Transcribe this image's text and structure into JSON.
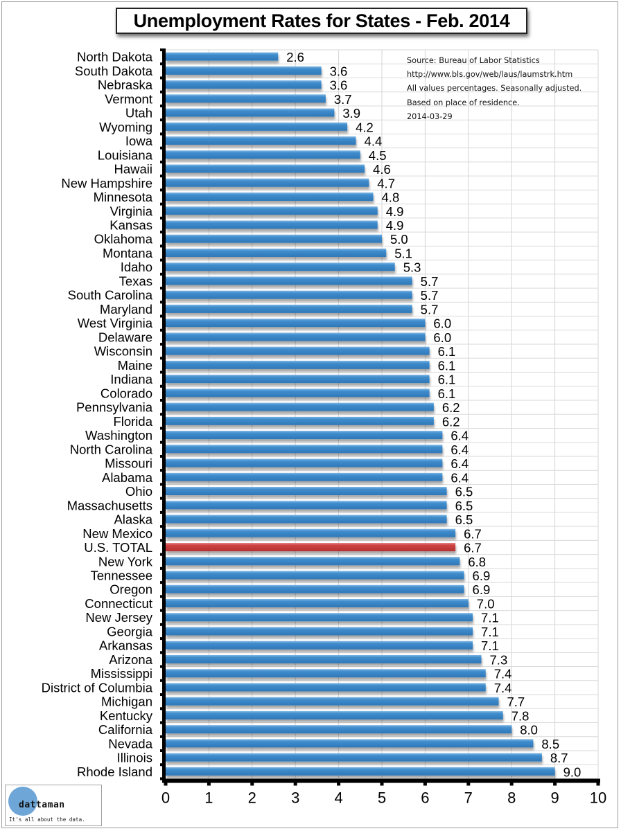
{
  "chart_data": {
    "type": "bar",
    "orientation": "horizontal",
    "title": "Unemployment Rates for States - Feb. 2014",
    "xlabel": "",
    "ylabel": "",
    "xlim": [
      0,
      10
    ],
    "x_ticks": [
      "0",
      "1",
      "2",
      "3",
      "4",
      "5",
      "6",
      "7",
      "8",
      "9",
      "10"
    ],
    "grid": true,
    "legend": "none",
    "highlight_category": "U.S. TOTAL",
    "colors": {
      "bar": "#3a87c8",
      "highlight": "#c83a3a"
    },
    "categories": [
      "North Dakota",
      "South Dakota",
      "Nebraska",
      "Vermont",
      "Utah",
      "Wyoming",
      "Iowa",
      "Louisiana",
      "Hawaii",
      "New Hampshire",
      "Minnesota",
      "Virginia",
      "Kansas",
      "Oklahoma",
      "Montana",
      "Idaho",
      "Texas",
      "South Carolina",
      "Maryland",
      "West Virginia",
      "Delaware",
      "Wisconsin",
      "Maine",
      "Indiana",
      "Colorado",
      "Pennsylvania",
      "Florida",
      "Washington",
      "North Carolina",
      "Missouri",
      "Alabama",
      "Ohio",
      "Massachusetts",
      "Alaska",
      "New Mexico",
      "U.S. TOTAL",
      "New York",
      "Tennessee",
      "Oregon",
      "Connecticut",
      "New Jersey",
      "Georgia",
      "Arkansas",
      "Arizona",
      "Mississippi",
      "District of Columbia",
      "Michigan",
      "Kentucky",
      "California",
      "Nevada",
      "Illinois",
      "Rhode Island"
    ],
    "values": [
      2.6,
      3.6,
      3.6,
      3.7,
      3.9,
      4.2,
      4.4,
      4.5,
      4.6,
      4.7,
      4.8,
      4.9,
      4.9,
      5.0,
      5.1,
      5.3,
      5.7,
      5.7,
      5.7,
      6.0,
      6.0,
      6.1,
      6.1,
      6.1,
      6.1,
      6.2,
      6.2,
      6.4,
      6.4,
      6.4,
      6.4,
      6.5,
      6.5,
      6.5,
      6.7,
      6.7,
      6.8,
      6.9,
      6.9,
      7.0,
      7.1,
      7.1,
      7.1,
      7.3,
      7.4,
      7.4,
      7.7,
      7.8,
      8.0,
      8.5,
      8.7,
      9.0
    ],
    "value_labels": [
      "2.6",
      "3.6",
      "3.6",
      "3.7",
      "3.9",
      "4.2",
      "4.4",
      "4.5",
      "4.6",
      "4.7",
      "4.8",
      "4.9",
      "4.9",
      "5.0",
      "5.1",
      "5.3",
      "5.7",
      "5.7",
      "5.7",
      "6.0",
      "6.0",
      "6.1",
      "6.1",
      "6.1",
      "6.1",
      "6.2",
      "6.2",
      "6.4",
      "6.4",
      "6.4",
      "6.4",
      "6.5",
      "6.5",
      "6.5",
      "6.7",
      "6.7",
      "6.8",
      "6.9",
      "6.9",
      "7.0",
      "7.1",
      "7.1",
      "7.1",
      "7.3",
      "7.4",
      "7.4",
      "7.7",
      "7.8",
      "8.0",
      "8.5",
      "8.7",
      "9.0"
    ],
    "annotations": [
      "Source: Bureau of Labor Statistics",
      "http://www.bls.gov/web/laus/laumstrk.htm",
      "All values percentages.  Seasonally adjusted.",
      "Based on place of residence.",
      "2014-03-29"
    ]
  },
  "logo": {
    "name": "dattaman",
    "tagline": "It's all about the data."
  }
}
